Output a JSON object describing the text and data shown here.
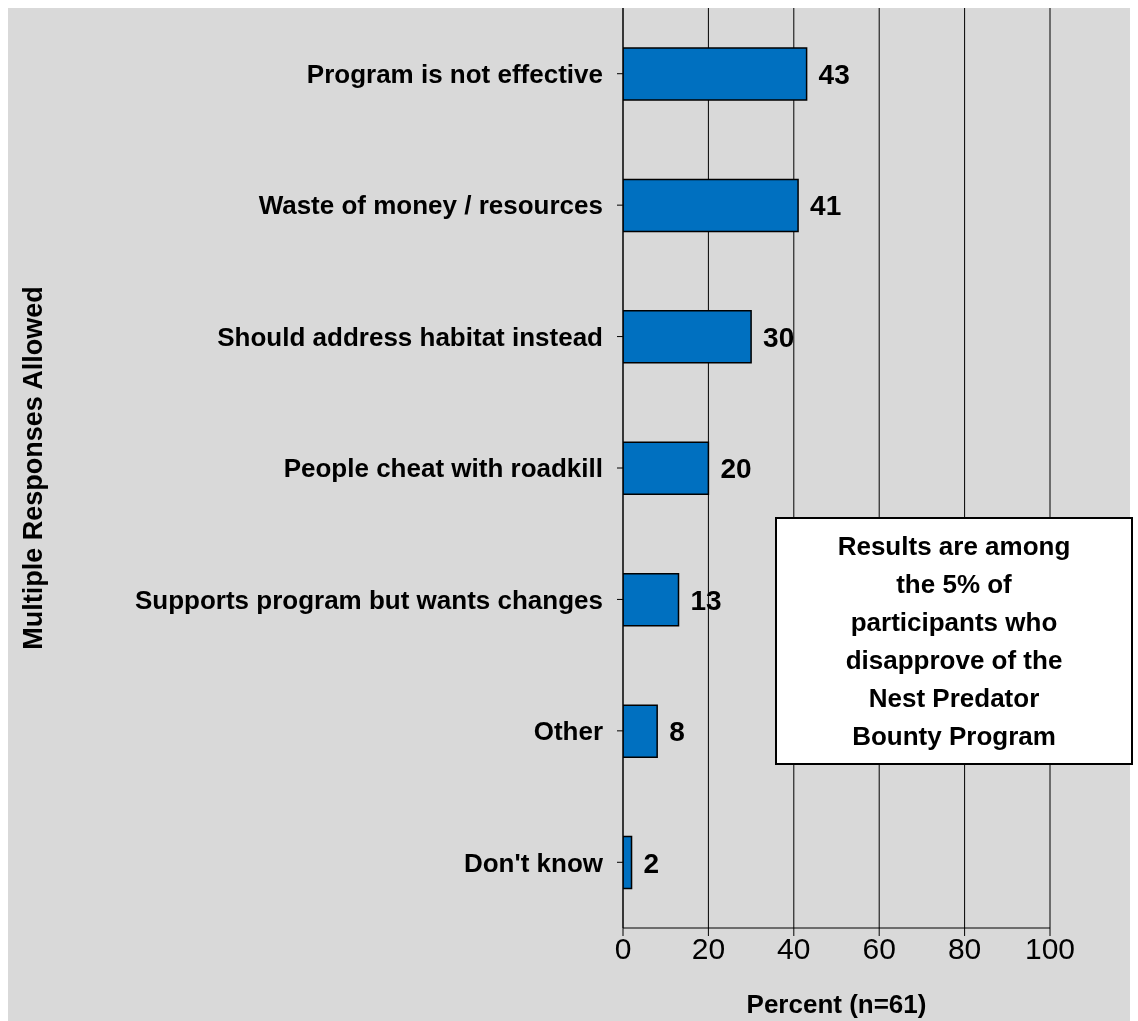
{
  "chart_data": {
    "type": "bar",
    "orientation": "horizontal",
    "xlabel": "Percent (n=61)",
    "ylabel": "Multiple Responses Allowed",
    "categories": [
      "Program is not effective",
      "Waste of money / resources",
      "Should address habitat instead",
      "People cheat with roadkill",
      "Supports program but wants changes",
      "Other",
      "Don't know"
    ],
    "values": [
      43,
      41,
      30,
      20,
      13,
      8,
      2
    ],
    "color": "#0070c0",
    "xlim": [
      0,
      100
    ],
    "xticks": [
      0,
      20,
      40,
      60,
      80,
      100
    ],
    "grid": "x",
    "data_labels": true,
    "annotations": [
      "Results are among the 5% of participants who disapprove of the Nest Predator Bounty Program"
    ]
  }
}
